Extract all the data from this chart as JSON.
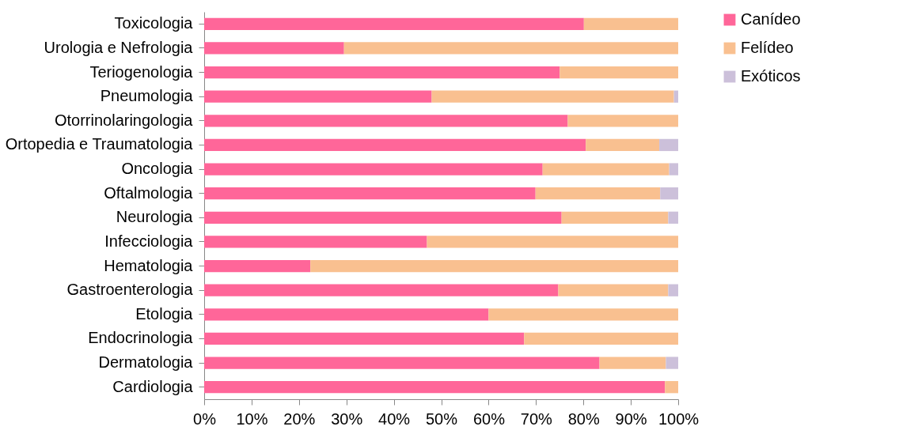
{
  "chart_data": {
    "type": "bar",
    "orientation": "horizontal",
    "stacked": true,
    "categories": [
      "Toxicologia",
      "Urologia e Nefrologia",
      "Teriogenologia",
      "Pneumologia",
      "Otorrinolaringologia",
      "Ortopedia e Traumatologia",
      "Oncologia",
      "Oftalmologia",
      "Neurologia",
      "Infecciologia",
      "Hematologia",
      "Gastroenterologia",
      "Etologia",
      "Endocrinologia",
      "Dermatologia",
      "Cardiologia"
    ],
    "series": [
      {
        "name": "Canídeo",
        "color": "#ff6699",
        "values": [
          80.1,
          29.5,
          75.0,
          48.0,
          76.7,
          80.5,
          71.4,
          69.9,
          75.4,
          47.0,
          22.4,
          74.7,
          60.0,
          67.5,
          83.4,
          97.2
        ]
      },
      {
        "name": "Felídeo",
        "color": "#f9c090",
        "values": [
          19.9,
          70.5,
          25.0,
          51.1,
          23.3,
          15.5,
          26.7,
          26.3,
          22.5,
          53.0,
          77.6,
          23.2,
          40.0,
          32.5,
          14.0,
          2.8
        ]
      },
      {
        "name": "Exóticos",
        "color": "#ccc0da",
        "values": [
          0,
          0,
          0,
          0.9,
          0,
          4.0,
          1.9,
          3.8,
          2.1,
          0,
          0,
          2.1,
          0,
          0,
          2.6,
          0
        ]
      }
    ],
    "xlim": [
      0,
      100
    ],
    "xticks": [
      {
        "value": 0,
        "label": "0%"
      },
      {
        "value": 10,
        "label": "10%"
      },
      {
        "value": 20,
        "label": "20%"
      },
      {
        "value": 30,
        "label": "30%"
      },
      {
        "value": 40,
        "label": "40%"
      },
      {
        "value": 50,
        "label": "50%"
      },
      {
        "value": 60,
        "label": "60%"
      },
      {
        "value": 70,
        "label": "70%"
      },
      {
        "value": 80,
        "label": "80%"
      },
      {
        "value": 90,
        "label": "90%"
      },
      {
        "value": 100,
        "label": "100%"
      }
    ],
    "legend": "right",
    "grid": false
  }
}
